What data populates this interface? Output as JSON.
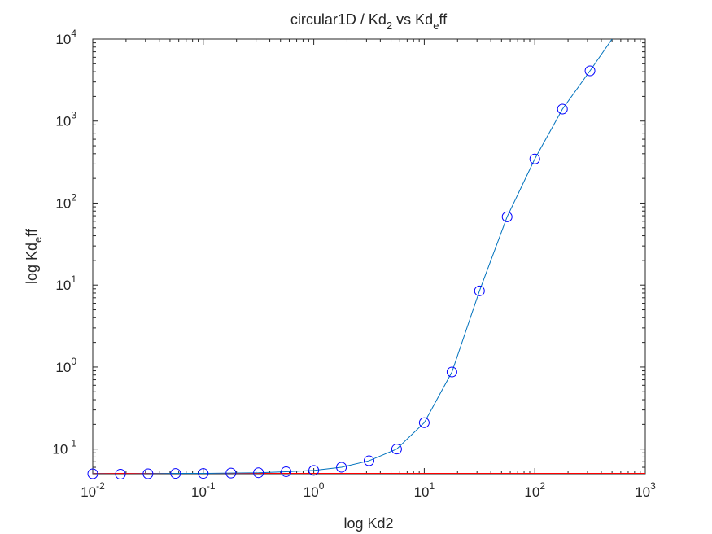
{
  "chart_data": {
    "type": "line",
    "title": {
      "base": "circular1D / Kd",
      "sub": "2",
      "tail": " vs Kd",
      "sub2": "e",
      "tail2": "ff"
    },
    "xlabel": "log Kd2",
    "ylabel": {
      "base": "log Kd",
      "sub": "e",
      "tail": "ff"
    },
    "x_scale": "log",
    "y_scale": "log",
    "xlim": [
      0.01,
      1000
    ],
    "ylim": [
      0.05,
      10000
    ],
    "x_ticks": [
      {
        "value": 0.01,
        "base": "10",
        "exp": "-2"
      },
      {
        "value": 0.1,
        "base": "10",
        "exp": "-1"
      },
      {
        "value": 1,
        "base": "10",
        "exp": "0"
      },
      {
        "value": 10,
        "base": "10",
        "exp": "1"
      },
      {
        "value": 100,
        "base": "10",
        "exp": "2"
      },
      {
        "value": 1000,
        "base": "10",
        "exp": "3"
      }
    ],
    "y_ticks": [
      {
        "value": 0.1,
        "base": "10",
        "exp": "-1"
      },
      {
        "value": 1,
        "base": "10",
        "exp": "0"
      },
      {
        "value": 10,
        "base": "10",
        "exp": "1"
      },
      {
        "value": 100,
        "base": "10",
        "exp": "2"
      },
      {
        "value": 1000,
        "base": "10",
        "exp": "3"
      },
      {
        "value": 10000,
        "base": "10",
        "exp": "4"
      }
    ],
    "grid": false,
    "baseline": {
      "y": 0.05,
      "color": "#ff0000"
    },
    "series": [
      {
        "style": "line",
        "color": "#0072bd",
        "x": [
          0.01,
          0.0178,
          0.0316,
          0.0562,
          0.1,
          0.178,
          0.316,
          0.562,
          1,
          1.78,
          3.16,
          5.62,
          10,
          17.8,
          31.6,
          56.2,
          100,
          178,
          316,
          500
        ],
        "y": [
          0.05,
          0.0495,
          0.05,
          0.0505,
          0.0505,
          0.051,
          0.0515,
          0.053,
          0.055,
          0.06,
          0.072,
          0.1,
          0.21,
          0.87,
          8.5,
          68,
          345,
          1400,
          4100,
          10000
        ]
      },
      {
        "style": "markers",
        "marker": "circle",
        "color": "#0000ff",
        "x": [
          0.01,
          0.0178,
          0.0316,
          0.0562,
          0.1,
          0.178,
          0.316,
          0.562,
          1,
          1.78,
          3.16,
          5.62,
          10,
          17.8,
          31.6,
          56.2,
          100,
          178,
          316
        ],
        "y": [
          0.05,
          0.0495,
          0.05,
          0.0505,
          0.0505,
          0.051,
          0.0515,
          0.053,
          0.055,
          0.06,
          0.072,
          0.1,
          0.21,
          0.87,
          8.5,
          68,
          345,
          1400,
          4100
        ]
      }
    ]
  }
}
